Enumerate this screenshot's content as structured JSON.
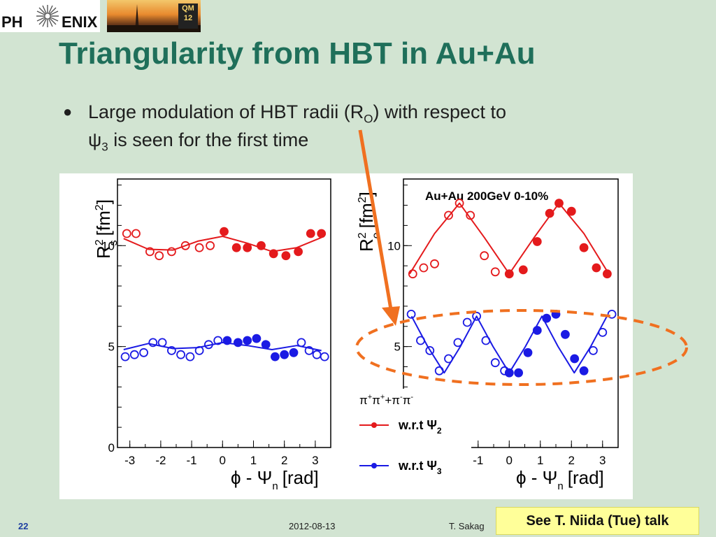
{
  "header": {
    "logo_left": "PH",
    "logo_right": "ENIX",
    "badge_line1": "QM",
    "badge_line2": "12"
  },
  "title": "Triangularity from HBT in Au+Au",
  "bullet": {
    "line1_a": "Large modulation of HBT radii (R",
    "line1_sub": "O",
    "line1_b": ") with respect to",
    "line2_sym": "ψ",
    "line2_sub": "3",
    "line2_b": " is seen for the first time"
  },
  "footer": {
    "page": "22",
    "date": "2012-08-13",
    "author": "T. Sakag"
  },
  "callout": "See T. Niida (Tue) talk",
  "colors": {
    "title": "#1f6f5a",
    "red": "#e41a1c",
    "blue": "#1a1ae4",
    "arrow": "#f07020",
    "callout_bg": "#ffff99"
  },
  "chart_data": [
    {
      "type": "scatter",
      "ylabel_main": "R",
      "ylabel_sup": "2",
      "ylabel_sub": "s",
      "ylabel_unit": "[fm",
      "ylabel_unit_sup": "2",
      "ylabel_unit_end": "]",
      "xlabel_phi": "ϕ - Ψ",
      "xlabel_sub": "n",
      "xlabel_unit": "[rad]",
      "xlim": [
        -3.4,
        3.5
      ],
      "ylim": [
        0,
        13.3
      ],
      "xticks": [
        "-3",
        "-2",
        "-1",
        "0",
        "1",
        "2",
        "3"
      ],
      "xtick_values": [
        -3,
        -2,
        -1,
        0,
        1,
        2,
        3
      ],
      "yticks": [
        "0",
        "5",
        "10"
      ],
      "ytick_values": [
        0,
        5,
        10
      ],
      "series": [
        {
          "color": "red",
          "marker": "open",
          "x": [
            -3.1,
            -2.8,
            -2.35,
            -2.05,
            -1.65,
            -1.2,
            -0.75,
            -0.4
          ],
          "y": [
            10.6,
            10.6,
            9.7,
            9.5,
            9.7,
            10.0,
            9.9,
            10.0
          ]
        },
        {
          "color": "red",
          "marker": "filled",
          "x": [
            0.05,
            0.45,
            0.8,
            1.25,
            1.65,
            2.05,
            2.45,
            2.85,
            3.2
          ],
          "y": [
            10.7,
            9.9,
            9.9,
            10.0,
            9.6,
            9.5,
            9.7,
            10.6,
            10.6
          ]
        },
        {
          "color": "red",
          "marker": "curve",
          "x": [
            -3.2,
            -2.4,
            -1.6,
            -0.8,
            0,
            0.8,
            1.6,
            2.4,
            3.2
          ],
          "y": [
            10.35,
            9.82,
            9.78,
            10.22,
            10.46,
            10.12,
            9.71,
            9.9,
            10.4
          ]
        },
        {
          "color": "blue",
          "marker": "open",
          "x": [
            -3.15,
            -2.85,
            -2.55,
            -2.25,
            -1.95,
            -1.65,
            -1.35,
            -1.05,
            -0.75,
            -0.45,
            -0.15
          ],
          "y": [
            4.5,
            4.6,
            4.7,
            5.2,
            5.2,
            4.8,
            4.6,
            4.5,
            4.8,
            5.1,
            5.3
          ]
        },
        {
          "color": "blue",
          "marker": "filled",
          "x": [
            0.15,
            0.5,
            0.8,
            1.1,
            1.4,
            1.7,
            2.0,
            2.3
          ],
          "y": [
            5.3,
            5.2,
            5.3,
            5.4,
            5.1,
            4.5,
            4.6,
            4.7
          ]
        },
        {
          "color": "blue",
          "marker": "open",
          "x": [
            2.55,
            2.8,
            3.05,
            3.3
          ],
          "y": [
            5.2,
            4.8,
            4.6,
            4.5
          ]
        },
        {
          "color": "blue",
          "marker": "curve",
          "x": [
            -3.2,
            -2.4,
            -1.6,
            -0.8,
            0,
            0.8,
            1.6,
            2.4,
            3.2
          ],
          "y": [
            4.85,
            5.15,
            4.9,
            4.95,
            5.2,
            5.05,
            4.85,
            5.05,
            4.8
          ]
        }
      ]
    },
    {
      "type": "scatter",
      "title": "Au+Au 200GeV 0-10%",
      "ylabel_main": "R",
      "ylabel_sup": "2",
      "ylabel_sub": "o",
      "ylabel_unit": "[fm",
      "ylabel_unit_sup": "2",
      "ylabel_unit_end": "]",
      "xlabel_phi": "ϕ - Ψ",
      "xlabel_sub": "n",
      "xlabel_unit": "[rad]",
      "xlim": [
        -3.4,
        3.5
      ],
      "ylim": [
        0,
        13.3
      ],
      "xticks": [
        "-1",
        "0",
        "1",
        "2",
        "3"
      ],
      "xtick_values": [
        -1,
        0,
        1,
        2,
        3
      ],
      "yticks": [
        "5",
        "10"
      ],
      "ytick_values": [
        5,
        10
      ],
      "legend_header": "π+π+ + π-π-",
      "legend_items": [
        {
          "label": "w.r.t Ψ",
          "sub": "2",
          "color": "red"
        },
        {
          "label": "w.r.t Ψ",
          "sub": "3",
          "color": "blue"
        }
      ],
      "series": [
        {
          "color": "red",
          "marker": "open",
          "x": [
            -3.1,
            -2.75,
            -2.4,
            -1.95,
            -1.6,
            -1.25,
            -0.8,
            -0.45
          ],
          "y": [
            8.6,
            8.9,
            9.1,
            11.5,
            12.1,
            11.5,
            9.5,
            8.7
          ]
        },
        {
          "color": "red",
          "marker": "filled",
          "x": [
            0.0,
            0.45,
            0.9,
            1.3,
            1.6,
            2.0,
            2.4,
            2.8,
            3.15
          ],
          "y": [
            8.6,
            8.8,
            10.2,
            11.6,
            12.1,
            11.7,
            9.9,
            8.9,
            8.6
          ]
        },
        {
          "color": "red",
          "marker": "curve",
          "x": [
            -3.2,
            -2.4,
            -1.6,
            -0.8,
            0,
            0.8,
            1.6,
            2.4,
            3.2
          ],
          "y": [
            8.6,
            10.6,
            12.1,
            10.4,
            8.6,
            10.4,
            12.1,
            10.6,
            8.6
          ]
        },
        {
          "color": "blue",
          "marker": "open",
          "x": [
            -3.15,
            -2.85,
            -2.55,
            -2.25,
            -1.95,
            -1.65,
            -1.35,
            -1.05,
            -0.75,
            -0.45,
            -0.15
          ],
          "y": [
            6.6,
            5.3,
            4.8,
            3.8,
            4.4,
            5.2,
            6.2,
            6.5,
            5.3,
            4.2,
            3.8
          ]
        },
        {
          "color": "blue",
          "marker": "filled",
          "x": [
            0.0,
            0.3,
            0.6,
            0.9,
            1.2,
            1.5,
            1.8,
            2.1,
            2.4
          ],
          "y": [
            3.7,
            3.7,
            4.7,
            5.8,
            6.4,
            6.6,
            5.6,
            4.4,
            3.8
          ]
        },
        {
          "color": "blue",
          "marker": "open",
          "x": [
            2.7,
            3.0,
            3.3
          ],
          "y": [
            4.8,
            5.7,
            6.6
          ]
        },
        {
          "color": "blue",
          "marker": "curve",
          "x": [
            -3.14,
            -2.62,
            -2.09,
            -1.57,
            -1.05,
            -0.52,
            0,
            0.52,
            1.05,
            1.57,
            2.09,
            2.62,
            3.14
          ],
          "y": [
            6.5,
            5.0,
            3.7,
            5.0,
            6.5,
            5.0,
            3.7,
            5.0,
            6.5,
            5.0,
            3.7,
            5.0,
            6.5
          ]
        }
      ]
    }
  ]
}
